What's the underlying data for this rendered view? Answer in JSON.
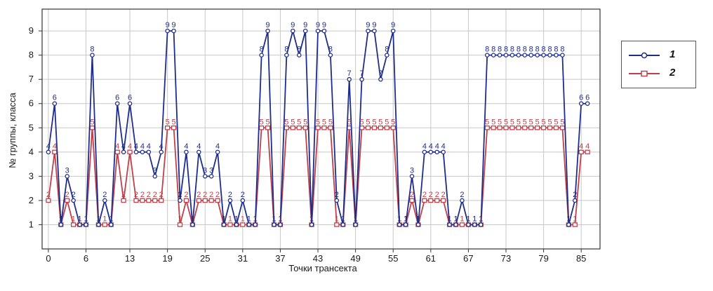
{
  "chart_data": {
    "type": "line",
    "title": "",
    "xlabel": "Точки трансекта",
    "ylabel": "№ группы, класса",
    "xlim": [
      -1,
      88
    ],
    "ylim": [
      0,
      9.9
    ],
    "x_ticks": [
      0,
      6,
      13,
      19,
      25,
      31,
      37,
      43,
      49,
      55,
      61,
      67,
      73,
      79,
      85
    ],
    "y_ticks": [
      1,
      2,
      3,
      4,
      5,
      6,
      7,
      8,
      9
    ],
    "grid": true,
    "legend_position": "right",
    "x": [
      0,
      1,
      2,
      3,
      4,
      5,
      6,
      7,
      8,
      9,
      10,
      11,
      12,
      13,
      14,
      15,
      16,
      17,
      18,
      19,
      20,
      21,
      22,
      23,
      24,
      25,
      26,
      27,
      28,
      29,
      30,
      31,
      32,
      33,
      34,
      35,
      36,
      37,
      38,
      39,
      40,
      41,
      42,
      43,
      44,
      45,
      46,
      47,
      48,
      49,
      50,
      51,
      52,
      53,
      54,
      55,
      56,
      57,
      58,
      59,
      60,
      61,
      62,
      63,
      64,
      65,
      66,
      67,
      68,
      69,
      70,
      71,
      72,
      73,
      74,
      75,
      76,
      77,
      78,
      79,
      80,
      81,
      82,
      83,
      84,
      85,
      86
    ],
    "series": [
      {
        "name": "1",
        "color": "#1f2d8a",
        "values": [
          4,
          6,
          1,
          3,
          2,
          1,
          1,
          8,
          1,
          2,
          1,
          6,
          4,
          6,
          4,
          4,
          4,
          3,
          4,
          9,
          9,
          2,
          4,
          1,
          4,
          3,
          3,
          4,
          1,
          2,
          1,
          2,
          1,
          1,
          8,
          9,
          1,
          1,
          8,
          9,
          8,
          9,
          1,
          9,
          9,
          8,
          2,
          1,
          7,
          1,
          7,
          9,
          9,
          7,
          8,
          9,
          1,
          1,
          3,
          1,
          4,
          4,
          4,
          4,
          1,
          1,
          2,
          1,
          1,
          1,
          8,
          8,
          8,
          8,
          8,
          8,
          8,
          8,
          8,
          8,
          8,
          8,
          8,
          1,
          2,
          6,
          6
        ]
      },
      {
        "name": "2",
        "color": "#c0404a",
        "values": [
          2,
          4,
          1,
          2,
          1,
          1,
          1,
          5,
          1,
          1,
          1,
          4,
          2,
          4,
          2,
          2,
          2,
          2,
          2,
          5,
          5,
          1,
          2,
          1,
          2,
          2,
          2,
          2,
          1,
          1,
          1,
          1,
          1,
          1,
          5,
          5,
          1,
          1,
          5,
          5,
          5,
          5,
          1,
          5,
          5,
          5,
          1,
          1,
          5,
          1,
          5,
          5,
          5,
          5,
          5,
          5,
          1,
          1,
          2,
          1,
          2,
          2,
          2,
          2,
          1,
          1,
          1,
          1,
          1,
          1,
          5,
          5,
          5,
          5,
          5,
          5,
          5,
          5,
          5,
          5,
          5,
          5,
          5,
          1,
          1,
          4,
          4
        ]
      }
    ]
  }
}
